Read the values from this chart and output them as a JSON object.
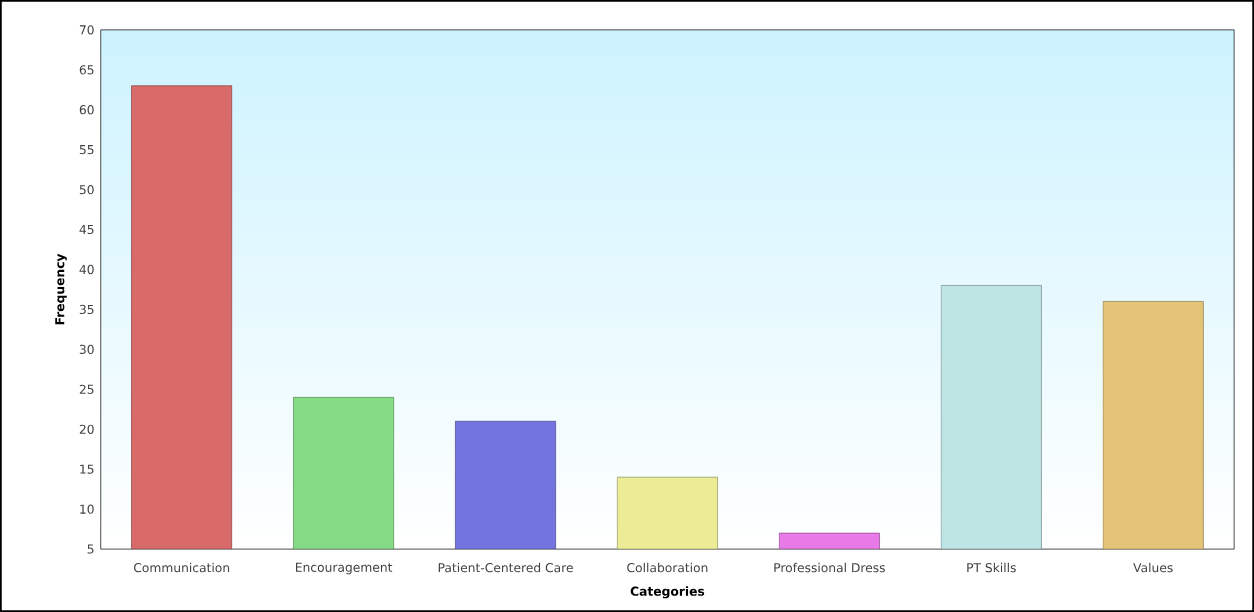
{
  "chart_data": {
    "type": "bar",
    "xlabel": "Categories",
    "ylabel": "Frequency",
    "categories": [
      "Communication",
      "Encouragement",
      "Patient-Centered Care",
      "Collaboration",
      "Professional Dress",
      "PT Skills",
      "Values"
    ],
    "values": [
      63,
      24,
      21,
      14,
      7,
      38,
      36
    ],
    "colors": [
      "#d86a6a",
      "#86dc86",
      "#7474e0",
      "#ecec96",
      "#e87ae8",
      "#bfe4e4",
      "#e4c477"
    ],
    "ylim": [
      5,
      70
    ],
    "yticks": [
      5,
      10,
      15,
      20,
      25,
      30,
      35,
      40,
      45,
      50,
      55,
      60,
      65,
      70
    ],
    "grid": false
  }
}
